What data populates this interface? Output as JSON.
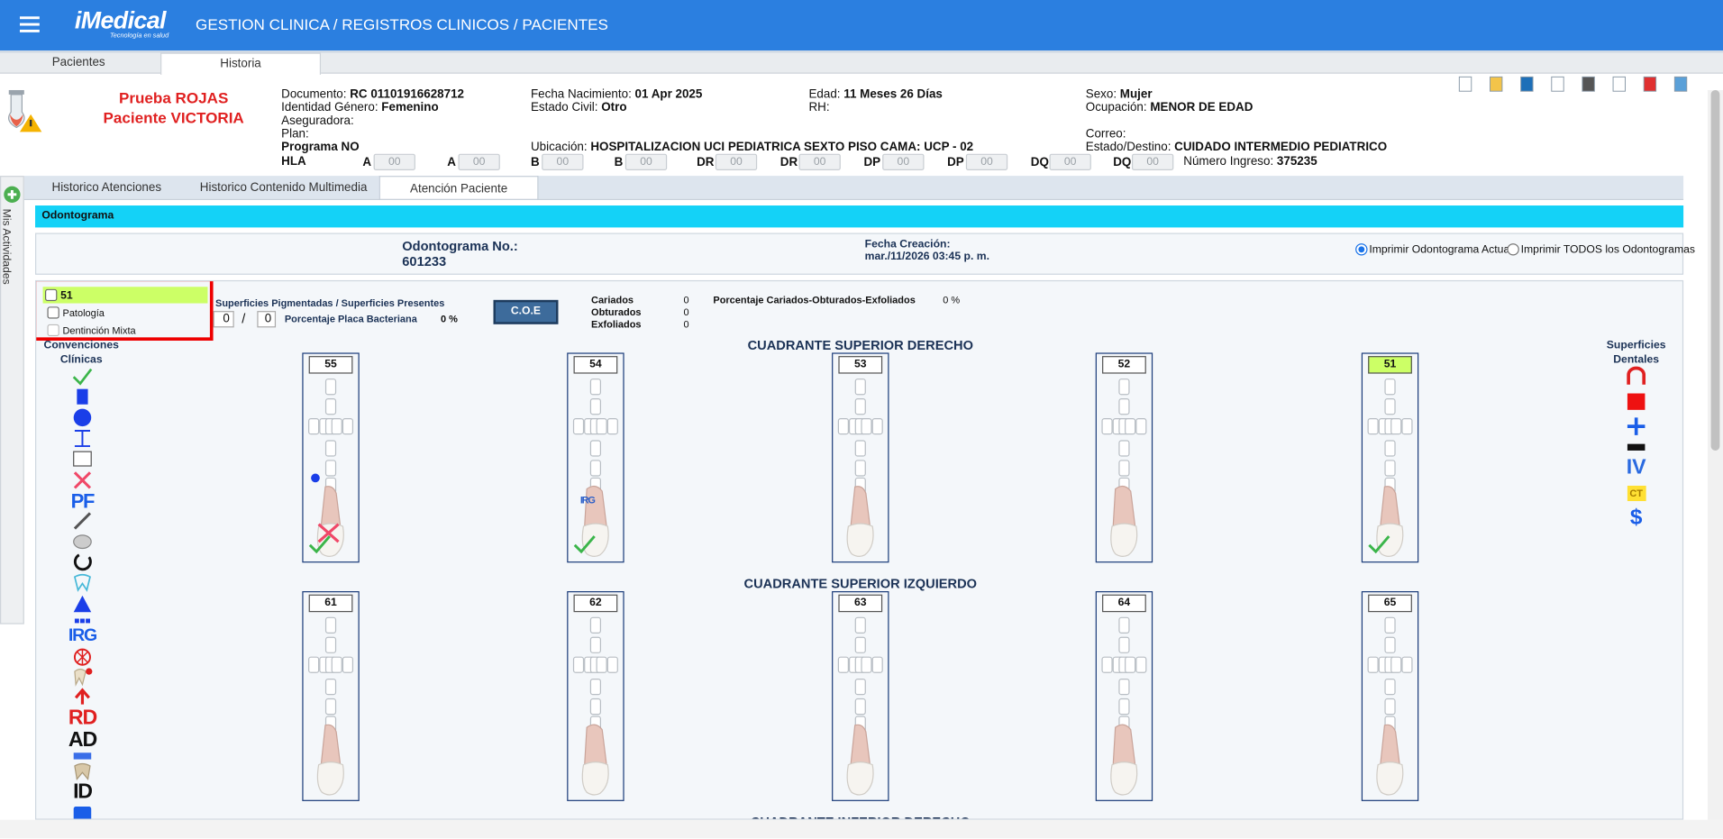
{
  "header": {
    "logo": "iMedical",
    "tagline": "Tecnología en salud",
    "breadcrumb": "GESTION CLINICA / REGISTROS CLINICOS / PACIENTES"
  },
  "tabs": [
    "Pacientes",
    "Historia"
  ],
  "patient": {
    "name": "Prueba ROJAS Paciente VICTORIA",
    "fields": [
      {
        "label": "Documento:",
        "value": "RC 01101916628712"
      },
      {
        "label": "Fecha Nacimiento:",
        "value": "01 Apr 2025"
      },
      {
        "label": "Edad:",
        "value": "11 Meses 26 Días"
      },
      {
        "label": "Sexo:",
        "value": "Mujer"
      },
      {
        "label": "Identidad Género:",
        "value": "Femenino"
      },
      {
        "label": "Estado Civil:",
        "value": "Otro"
      },
      {
        "label": "RH:"
      },
      {
        "label": "Ocupación:",
        "value": "MENOR DE EDAD"
      },
      {
        "label": "Aseguradora:"
      },
      {
        "label": "Plan:"
      },
      {
        "label": "Correo:"
      },
      {
        "label": "Programa",
        "value": "NO"
      },
      {
        "label": "Ubicación:",
        "value": "HOSPITALIZACION UCI PEDIATRICA SEXTO PISO CAMA: UCP - 02"
      },
      {
        "label": "Estado/Destino:",
        "value": "CUIDADO INTERMEDIO PEDIATRICO"
      },
      {
        "label": "Número Ingreso:",
        "value": "375235"
      }
    ],
    "hla": {
      "label": "HLA",
      "placeholder": "00",
      "loci": [
        "A",
        "A",
        "B",
        "B",
        "DR",
        "DR",
        "DP",
        "DP",
        "DQ",
        "DQ"
      ]
    }
  },
  "side_tab": "Mis Actividades",
  "subtabs": [
    "Historico Atenciones",
    "Historico Contenido Multimedia",
    "Atención Paciente"
  ],
  "section": "Odontograma",
  "odontogram": {
    "number_label": "Odontograma No.:",
    "number": "601233",
    "date_label": "Fecha Creación:",
    "date": "mar./11/2026 03:45 p. m.",
    "print_options": [
      "Imprimir Odontograma Actual",
      "Imprimir TODOS los Odontogramas"
    ]
  },
  "filters": [
    "51",
    "Patología",
    "Dentinción Mixta"
  ],
  "stats": {
    "surfaces_label": "Superficies Pigmentadas / Superficies Presentes",
    "pigmented": "0",
    "separator": "/",
    "present": "0",
    "plaque_label": "Porcentaje Placa Bacteriana",
    "plaque": "0 %",
    "coe_button": "C.O.E",
    "counts": [
      {
        "label": "Cariados",
        "value": "0"
      },
      {
        "label": "Obturados",
        "value": "0"
      },
      {
        "label": "Exfoliados",
        "value": "0"
      }
    ],
    "coe_label": "Porcentaje Cariados-Obturados-Exfoliados",
    "coe": "0 %"
  },
  "conventions": {
    "title": "Convenciones Clínicas",
    "text_icons": [
      "PF",
      "IRG",
      "RD",
      "AD",
      "ID"
    ]
  },
  "surfaces": {
    "title": "Superficies Dentales",
    "text_icons": [
      "IV",
      "CT",
      "$"
    ]
  },
  "quadrants": [
    {
      "title": "CUADRANTE SUPERIOR DERECHO",
      "teeth": [
        "55",
        "54",
        "53",
        "52",
        "51"
      ]
    },
    {
      "title": "CUADRANTE SUPERIOR IZQUIERDO",
      "teeth": [
        "61",
        "62",
        "63",
        "64",
        "65"
      ]
    },
    {
      "title": "CUADRANTE INFERIOR DERECHO"
    }
  ]
}
